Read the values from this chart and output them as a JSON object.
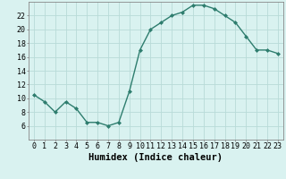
{
  "x": [
    0,
    1,
    2,
    3,
    4,
    5,
    6,
    7,
    8,
    9,
    10,
    11,
    12,
    13,
    14,
    15,
    16,
    17,
    18,
    19,
    20,
    21,
    22,
    23
  ],
  "y": [
    10.5,
    9.5,
    8.0,
    9.5,
    8.5,
    6.5,
    6.5,
    6.0,
    6.5,
    11.0,
    17.0,
    20.0,
    21.0,
    22.0,
    22.5,
    23.5,
    23.5,
    23.0,
    22.0,
    21.0,
    19.0,
    17.0,
    17.0,
    16.5
  ],
  "line_color": "#2e7d6e",
  "marker": "D",
  "marker_size": 2.0,
  "line_width": 1.0,
  "bg_color": "#d9f2f0",
  "grid_color": "#b8dbd8",
  "xlabel": "Humidex (Indice chaleur)",
  "xlabel_fontsize": 7.5,
  "ylim": [
    4,
    24
  ],
  "xlim": [
    -0.5,
    23.5
  ],
  "yticks": [
    6,
    8,
    10,
    12,
    14,
    16,
    18,
    20,
    22
  ],
  "xticks": [
    0,
    1,
    2,
    3,
    4,
    5,
    6,
    7,
    8,
    9,
    10,
    11,
    12,
    13,
    14,
    15,
    16,
    17,
    18,
    19,
    20,
    21,
    22,
    23
  ],
  "tick_fontsize": 6.0,
  "spine_color": "#888888"
}
